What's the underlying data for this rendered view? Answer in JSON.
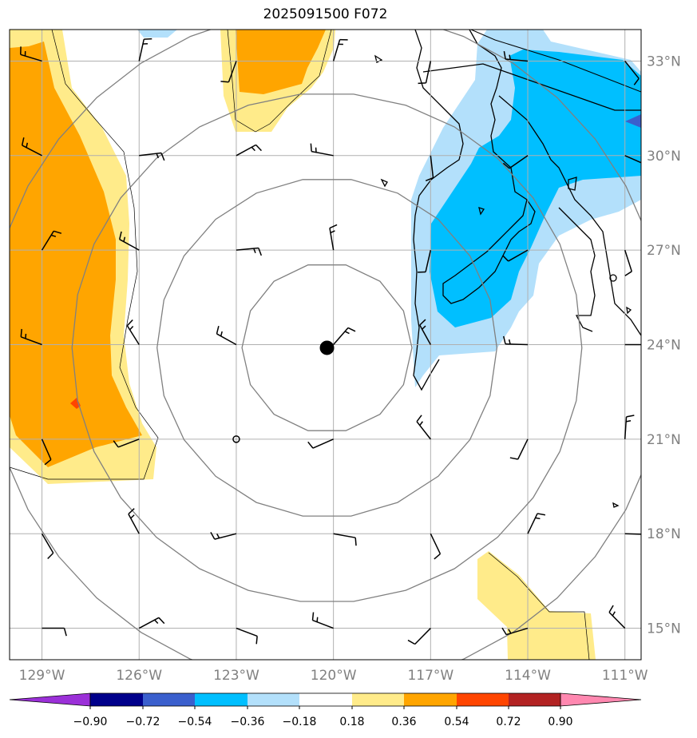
{
  "title": "2025091500 F072",
  "map": {
    "lon_range": [
      -130,
      -110.5
    ],
    "lat_range": [
      14,
      34
    ],
    "grid_lons": [
      -129,
      -126,
      -123,
      -120,
      -117,
      -114,
      -111
    ],
    "grid_lats": [
      15,
      18,
      21,
      24,
      27,
      30,
      33
    ],
    "lon_labels": [
      "129°W",
      "126°W",
      "123°W",
      "120°W",
      "117°W",
      "114°W",
      "111°W"
    ],
    "lat_labels": [
      "15°N",
      "18°N",
      "21°N",
      "24°N",
      "27°N",
      "30°N",
      "33°N"
    ],
    "center": {
      "lon": -120.2,
      "lat": 23.9
    },
    "range_rings_km": [
      300,
      600,
      900,
      1200
    ]
  },
  "colorbar": {
    "ticks": [
      "−0.90",
      "−0.72",
      "−0.54",
      "−0.36",
      "−0.18",
      "0.18",
      "0.36",
      "0.54",
      "0.72",
      "0.90"
    ],
    "colors": [
      "#9b30d8",
      "#00008b",
      "#3a5fcd",
      "#00bfff",
      "#b3e0fb",
      "#ffffff",
      "#ffeb8a",
      "#ffa500",
      "#ff4500",
      "#b22222",
      "#ff88b0"
    ]
  },
  "colors": {
    "pos_low": "#ffeb8a",
    "pos_mid": "#ffa500",
    "pos_high": "#ff4500",
    "neg_low": "#b3e0fb",
    "neg_mid": "#00bfff",
    "neg_strong": "#3a5fcd",
    "ring": "#808080",
    "grid": "#b0b0b0"
  }
}
